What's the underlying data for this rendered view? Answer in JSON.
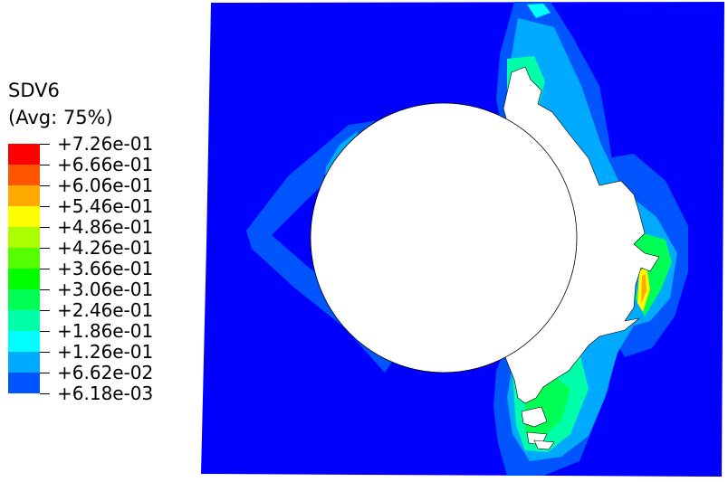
{
  "legend": {
    "title": "SDV6",
    "subtitle": "(Avg: 75%)",
    "levels": [
      {
        "label": "+7.26e-01",
        "color": "#ff0000"
      },
      {
        "label": "+6.66e-01",
        "color": "#ff5500"
      },
      {
        "label": "+6.06e-01",
        "color": "#ffaa00"
      },
      {
        "label": "+5.46e-01",
        "color": "#ffff00"
      },
      {
        "label": "+4.86e-01",
        "color": "#aaff00"
      },
      {
        "label": "+4.26e-01",
        "color": "#55ff00"
      },
      {
        "label": "+3.66e-01",
        "color": "#00ff00"
      },
      {
        "label": "+3.06e-01",
        "color": "#00ff55"
      },
      {
        "label": "+2.46e-01",
        "color": "#00ffaa"
      },
      {
        "label": "+1.86e-01",
        "color": "#00ffff"
      },
      {
        "label": "+1.26e-01",
        "color": "#00aaff"
      },
      {
        "label": "+6.62e-02",
        "color": "#0055ff"
      },
      {
        "label": "+6.18e-03",
        "color": "#0000ff"
      }
    ]
  }
}
